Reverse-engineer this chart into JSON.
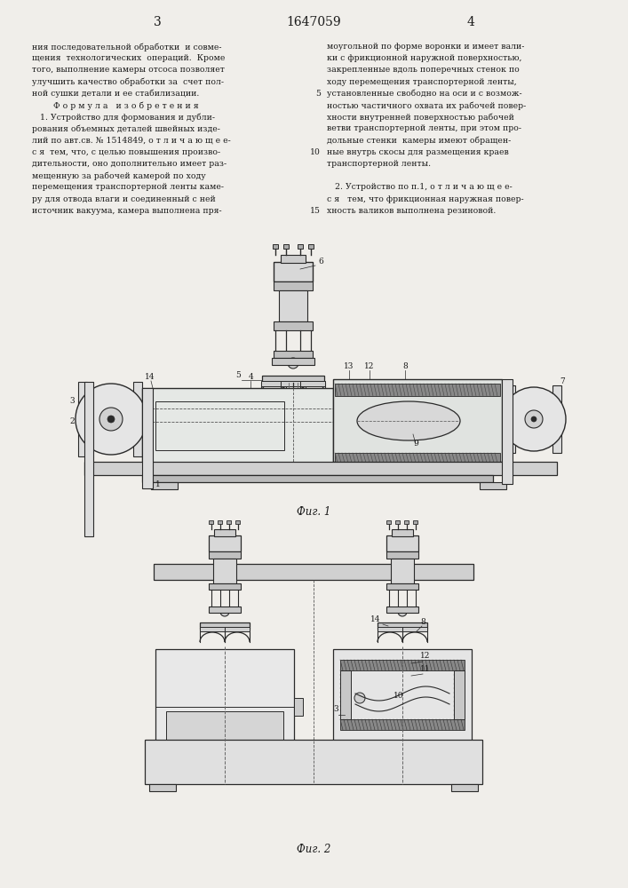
{
  "page_number_left": "3",
  "patent_number": "1647059",
  "page_number_right": "4",
  "left_column_text": [
    "ния последовательной обработки  и совме-",
    "щения  технологических  операций.  Кроме",
    "того, выполнение камеры отсоса позволяет",
    "улучшить качество обработки за  счет пол-",
    "ной сушки детали и ее стабилизации.",
    "        Ф о р м у л а   и з о б р е т е н и я",
    "   1. Устройство для формования и дубли-",
    "рования объемных деталей швейных изде-",
    "лий по авт.св. № 1514849, о т л и ч а ю щ е е-",
    "с я  тем, что, с целью повышения произво-",
    "дительности, оно дополнительно имеет раз-",
    "мещенную за рабочей камерой по ходу",
    "перемещения транспортерной ленты каме-",
    "ру для отвода влаги и соединенный с ней",
    "источник вакуума, камера выполнена пря-"
  ],
  "right_column_text": [
    "моугольной по форме воронки и имеет вали-",
    "ки с фрикционной наружной поверхностью,",
    "закрепленные вдоль поперечных стенок по",
    "ходу перемещения транспортерной ленты,",
    "установленные свободно на оси и с возмож-",
    "ностью частичного охвата их рабочей повер-",
    "хности внутренней поверхностью рабочей",
    "ветви транспортерной ленты, при этом про-",
    "дольные стенки  камеры имеют обращен-",
    "ные внутрь скосы для размещения краев",
    "транспортерной ленты.",
    "",
    "   2. Устройство по п.1, о т л и ч а ю щ е е-",
    "с я   тем, что фрикционная наружная повер-",
    "хность валиков выполнена резиновой."
  ],
  "fig1_caption": "Фиг. 1",
  "fig2_caption": "Фиг. 2",
  "bg": "#f0eeea",
  "tc": "#1a1a1a",
  "lc": "#2a2a2a",
  "hatch_c": "#555555"
}
